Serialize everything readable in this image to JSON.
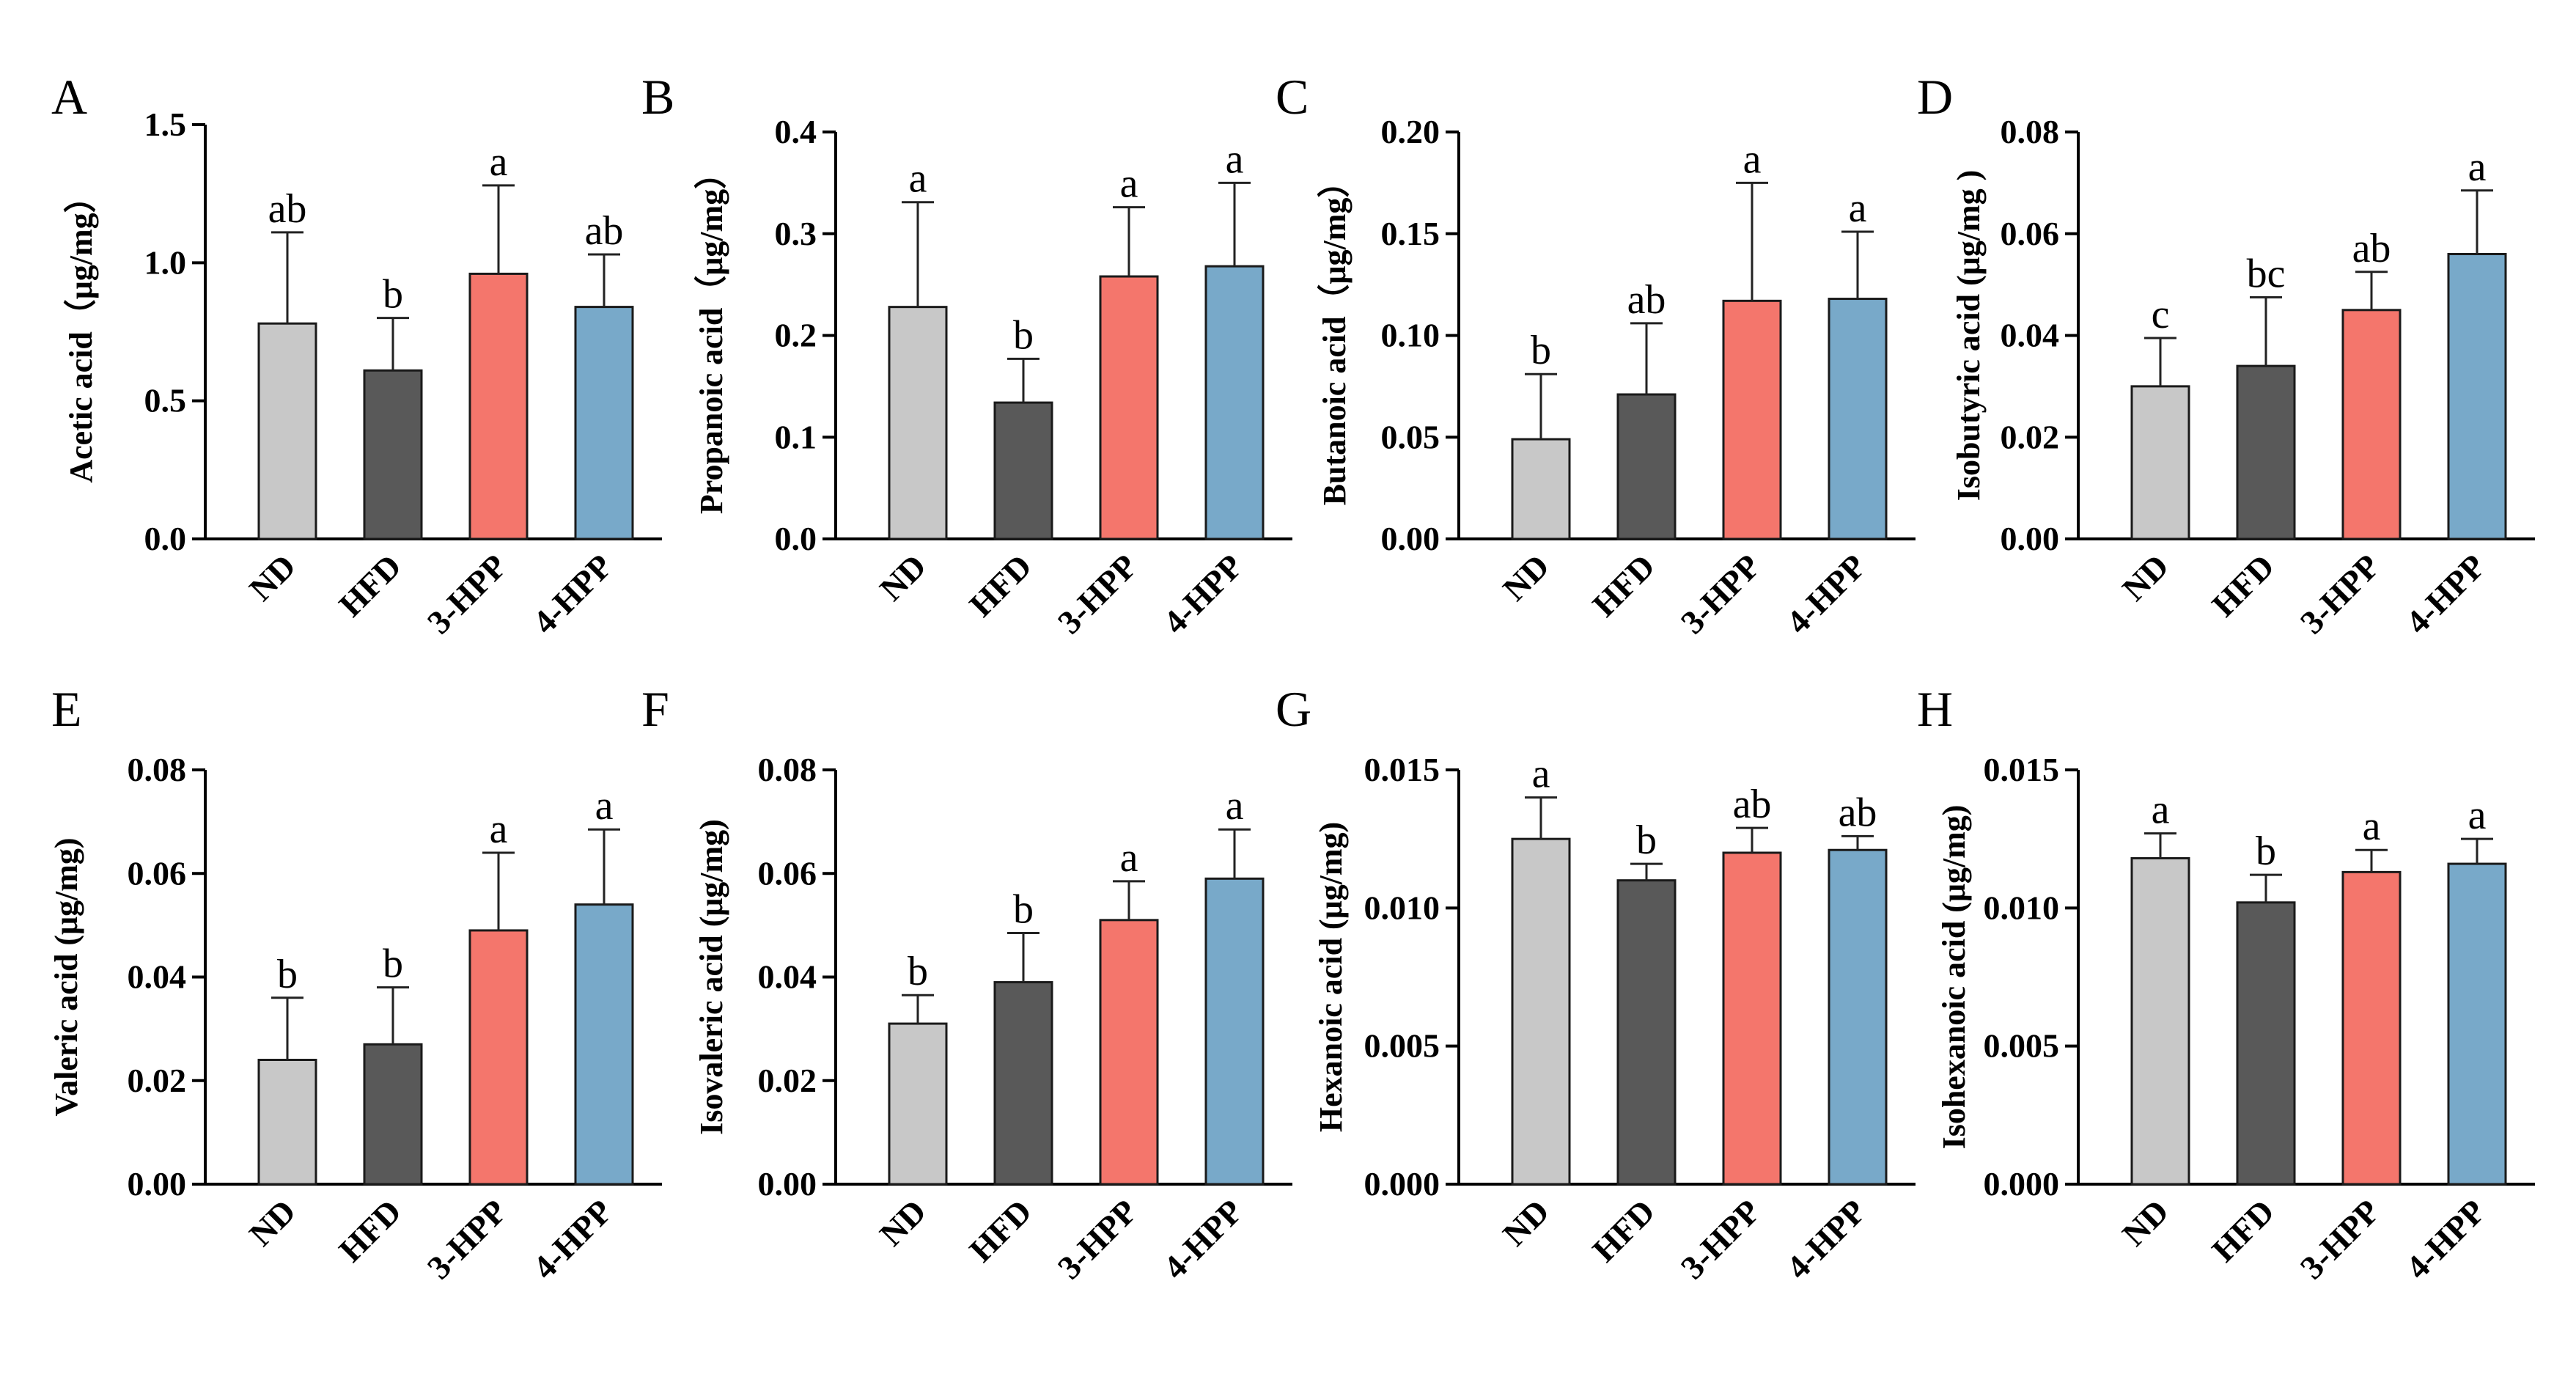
{
  "figure": {
    "categories": [
      "ND",
      "HFD",
      "3-HPP",
      "4-HPP"
    ],
    "colors": {
      "ND": "#c8c8c8",
      "HFD": "#595959",
      "3-HPP": "#f4766c",
      "4-HPP": "#78a9c9",
      "outline": "#1a1a1a"
    }
  },
  "chart_data": [
    {
      "type": "bar",
      "panel": "A",
      "ylabel": "Acetic acid（μg/mg）",
      "ylim": [
        0,
        1.5
      ],
      "yticks": [
        "0.0",
        "0.5",
        "1.0",
        "1.5"
      ],
      "categories": [
        "ND",
        "HFD",
        "3-HPP",
        "4-HPP"
      ],
      "values": [
        0.78,
        0.61,
        0.96,
        0.84
      ],
      "errors": [
        0.33,
        0.19,
        0.32,
        0.19
      ],
      "letters": [
        "ab",
        "b",
        "a",
        "ab"
      ]
    },
    {
      "type": "bar",
      "panel": "B",
      "ylabel": "Propanoic acid（μg/mg）",
      "ylim": [
        0,
        0.4
      ],
      "yticks": [
        "0.0",
        "0.1",
        "0.2",
        "0.3",
        "0.4"
      ],
      "categories": [
        "ND",
        "HFD",
        "3-HPP",
        "4-HPP"
      ],
      "values": [
        0.228,
        0.134,
        0.258,
        0.268
      ],
      "errors": [
        0.103,
        0.043,
        0.068,
        0.082
      ],
      "letters": [
        "a",
        "b",
        "a",
        "a"
      ]
    },
    {
      "type": "bar",
      "panel": "C",
      "ylabel": "Butanoic acid（μg/mg）",
      "ylim": [
        0,
        0.2
      ],
      "yticks": [
        "0.00",
        "0.05",
        "0.10",
        "0.15",
        "0.20"
      ],
      "categories": [
        "ND",
        "HFD",
        "3-HPP",
        "4-HPP"
      ],
      "values": [
        0.049,
        0.071,
        0.117,
        0.118
      ],
      "errors": [
        0.032,
        0.035,
        0.058,
        0.033
      ],
      "letters": [
        "b",
        "ab",
        "a",
        "a"
      ]
    },
    {
      "type": "bar",
      "panel": "D",
      "ylabel": "Isobutyric acid (μg/mg )",
      "ylim": [
        0,
        0.08
      ],
      "yticks": [
        "0.00",
        "0.02",
        "0.04",
        "0.06",
        "0.08"
      ],
      "categories": [
        "ND",
        "HFD",
        "3-HPP",
        "4-HPP"
      ],
      "values": [
        0.03,
        0.034,
        0.045,
        0.056
      ],
      "errors": [
        0.0095,
        0.0135,
        0.0075,
        0.0125
      ],
      "letters": [
        "c",
        "bc",
        "ab",
        "a"
      ]
    },
    {
      "type": "bar",
      "panel": "E",
      "ylabel": "Valeric acid (μg/mg)",
      "ylim": [
        0,
        0.08
      ],
      "yticks": [
        "0.00",
        "0.02",
        "0.04",
        "0.06",
        "0.08"
      ],
      "categories": [
        "ND",
        "HFD",
        "3-HPP",
        "4-HPP"
      ],
      "values": [
        0.024,
        0.027,
        0.049,
        0.054
      ],
      "errors": [
        0.012,
        0.011,
        0.015,
        0.0145
      ],
      "letters": [
        "b",
        "b",
        "a",
        "a"
      ]
    },
    {
      "type": "bar",
      "panel": "F",
      "ylabel": "Isovaleric acid (μg/mg)",
      "ylim": [
        0,
        0.08
      ],
      "yticks": [
        "0.00",
        "0.02",
        "0.04",
        "0.06",
        "0.08"
      ],
      "categories": [
        "ND",
        "HFD",
        "3-HPP",
        "4-HPP"
      ],
      "values": [
        0.031,
        0.039,
        0.051,
        0.059
      ],
      "errors": [
        0.0055,
        0.0095,
        0.0075,
        0.0095
      ],
      "letters": [
        "b",
        "b",
        "a",
        "a"
      ]
    },
    {
      "type": "bar",
      "panel": "G",
      "ylabel": "Hexanoic acid (μg/mg)",
      "ylim": [
        0,
        0.015
      ],
      "yticks": [
        "0.000",
        "0.005",
        "0.010",
        "0.015"
      ],
      "categories": [
        "ND",
        "HFD",
        "3-HPP",
        "4-HPP"
      ],
      "values": [
        0.0125,
        0.011,
        0.012,
        0.0121
      ],
      "errors": [
        0.0015,
        0.0006,
        0.0009,
        0.0005
      ],
      "letters": [
        "a",
        "b",
        "ab",
        "ab"
      ]
    },
    {
      "type": "bar",
      "panel": "H",
      "ylabel": "Isohexanoic acid (μg/mg)",
      "ylim": [
        0,
        0.015
      ],
      "yticks": [
        "0.000",
        "0.005",
        "0.010",
        "0.015"
      ],
      "categories": [
        "ND",
        "HFD",
        "3-HPP",
        "4-HPP"
      ],
      "values": [
        0.0118,
        0.0102,
        0.0113,
        0.0116
      ],
      "errors": [
        0.0009,
        0.001,
        0.0008,
        0.0009
      ],
      "letters": [
        "a",
        "b",
        "a",
        "a"
      ]
    }
  ]
}
